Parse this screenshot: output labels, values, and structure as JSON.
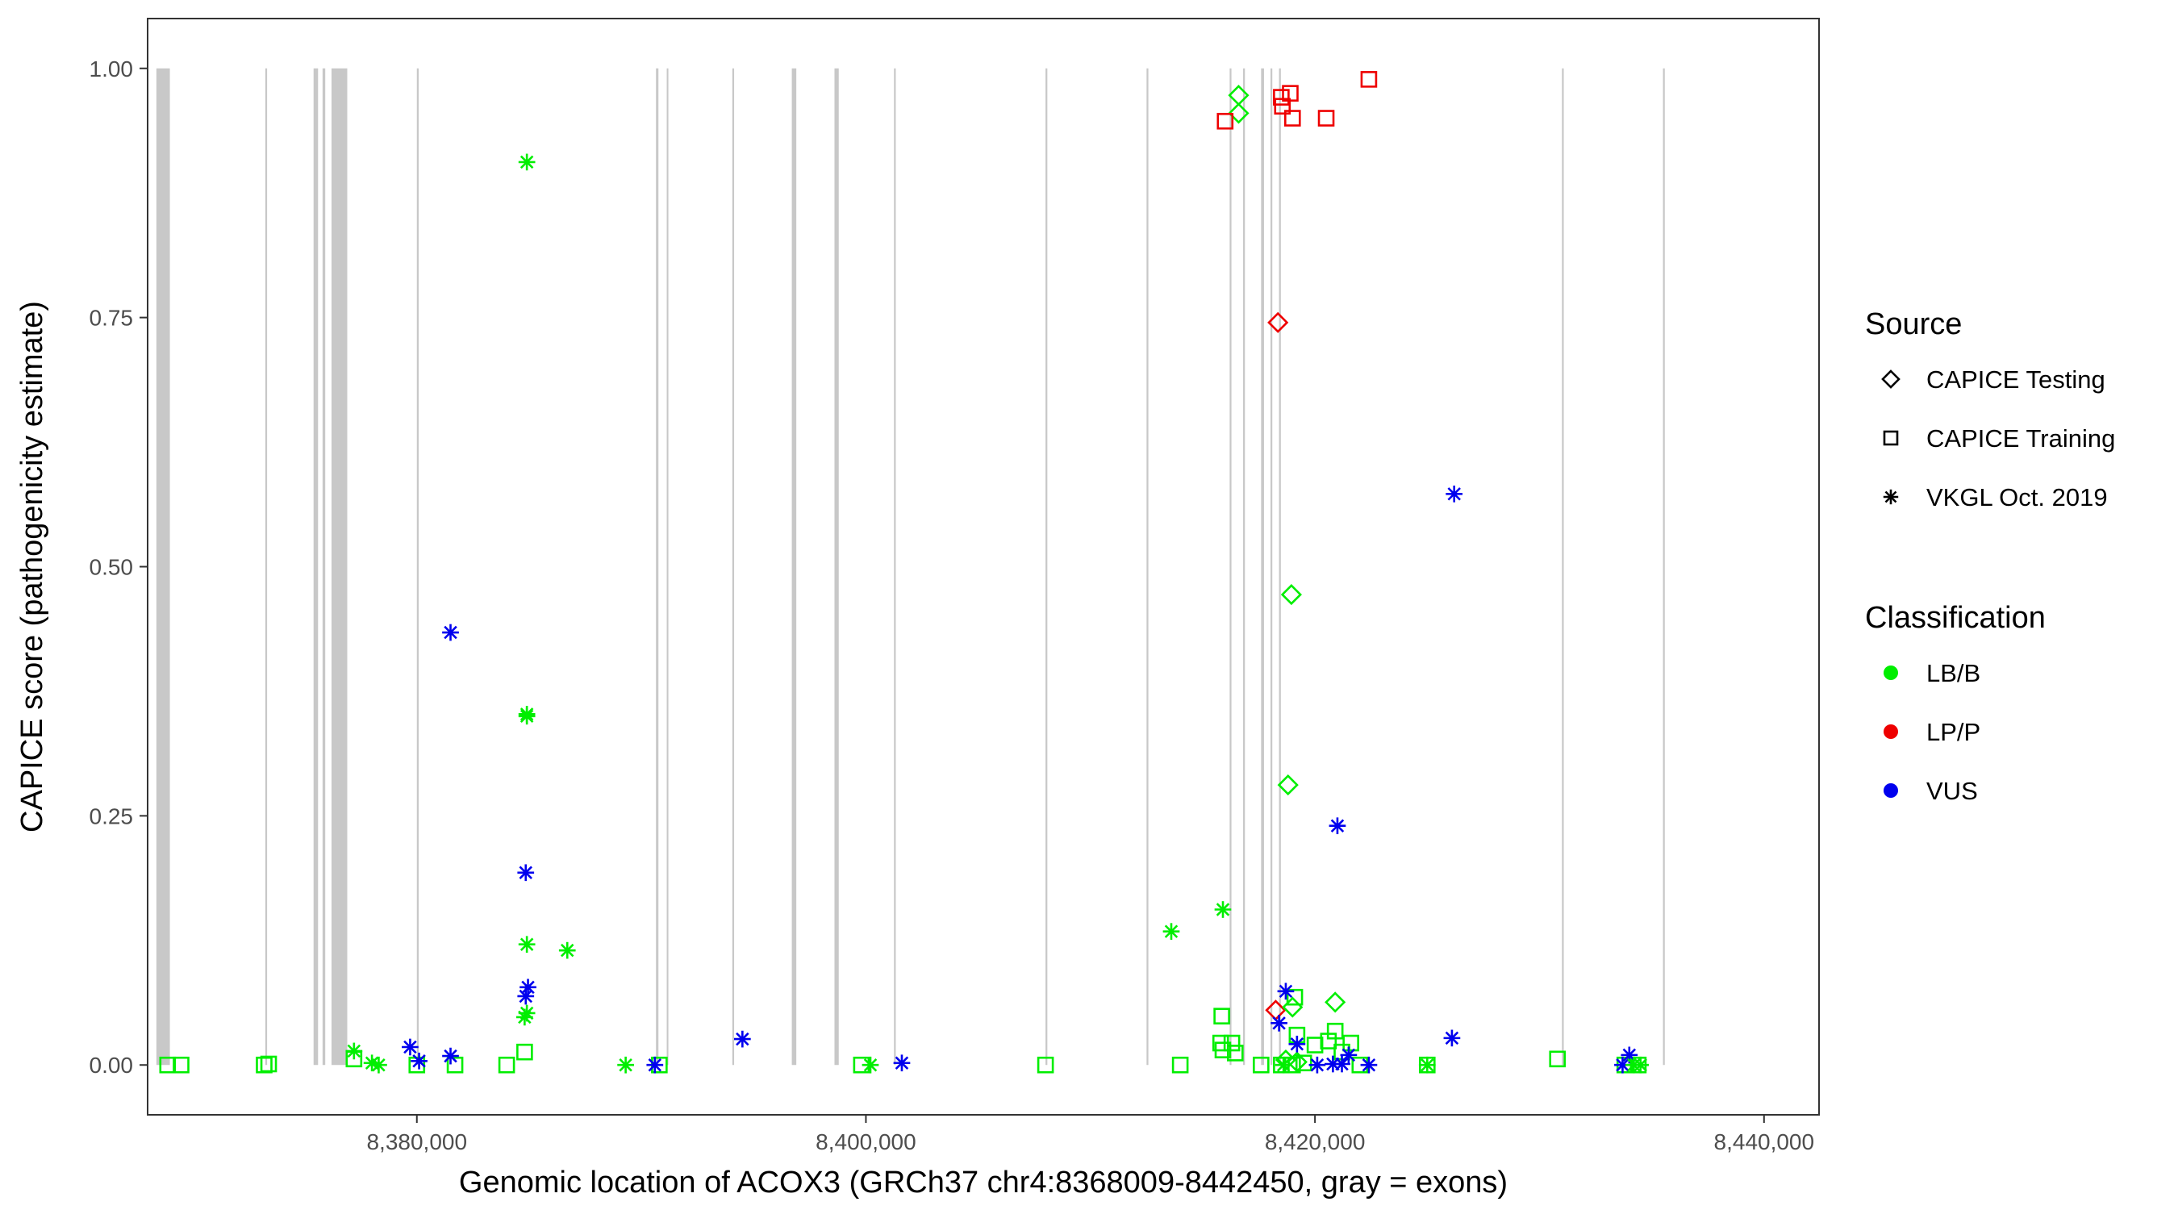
{
  "chart_data": {
    "type": "scatter",
    "title": "",
    "xlabel": "Genomic location of ACOX3 (GRCh37 chr4:8368009-8442450, gray = exons)",
    "ylabel": "CAPICE score (pathogenicity estimate)",
    "xlim": [
      8368009,
      8442450
    ],
    "ylim": [
      -0.05,
      1.05
    ],
    "x_ticks": [
      8380000,
      8400000,
      8420000,
      8440000
    ],
    "x_tick_labels": [
      "8,380,000",
      "8,400,000",
      "8,420,000",
      "8,440,000"
    ],
    "y_ticks": [
      0,
      0.25,
      0.5,
      0.75,
      1.0
    ],
    "y_tick_labels": [
      "0.00",
      "0.25",
      "0.50",
      "0.75",
      "1.00"
    ],
    "grid": false,
    "exons": [
      [
        8368400,
        8369000
      ],
      [
        8373250,
        8373330
      ],
      [
        8375400,
        8375600
      ],
      [
        8375800,
        8375920
      ],
      [
        8376200,
        8376900
      ],
      [
        8380000,
        8380080
      ],
      [
        8390650,
        8390760
      ],
      [
        8391130,
        8391200
      ],
      [
        8394050,
        8394130
      ],
      [
        8396700,
        8396900
      ],
      [
        8398600,
        8398790
      ],
      [
        8401250,
        8401330
      ],
      [
        8408000,
        8408080
      ],
      [
        8412500,
        8412580
      ],
      [
        8416200,
        8416280
      ],
      [
        8416800,
        8416880
      ],
      [
        8417600,
        8417730
      ],
      [
        8418020,
        8418100
      ],
      [
        8418400,
        8418480
      ],
      [
        8431000,
        8431080
      ],
      [
        8435500,
        8435580
      ]
    ],
    "legend": {
      "position": "right",
      "source_title": "Source",
      "source_items": [
        {
          "label": "CAPICE Testing",
          "shape": "diamond"
        },
        {
          "label": "CAPICE Training",
          "shape": "square"
        },
        {
          "label": "VKGL Oct. 2019",
          "shape": "asterisk"
        }
      ],
      "class_title": "Classification",
      "class_items": [
        {
          "label": "LB/B",
          "color": "#00ee00"
        },
        {
          "label": "LP/P",
          "color": "#ee0000"
        },
        {
          "label": "VUS",
          "color": "#0000ee"
        }
      ]
    },
    "series": [
      {
        "name": "CAPICE Testing",
        "shape": "diamond",
        "points": [
          {
            "x": 8416600,
            "y": 0.973,
            "c": "LB/B"
          },
          {
            "x": 8416600,
            "y": 0.955,
            "c": "LB/B"
          },
          {
            "x": 8418350,
            "y": 0.745,
            "c": "LP/P"
          },
          {
            "x": 8418950,
            "y": 0.472,
            "c": "LB/B"
          },
          {
            "x": 8418800,
            "y": 0.281,
            "c": "LB/B"
          },
          {
            "x": 8420900,
            "y": 0.063,
            "c": "LB/B"
          },
          {
            "x": 8418250,
            "y": 0.055,
            "c": "LP/P"
          },
          {
            "x": 8419000,
            "y": 0.058,
            "c": "LB/B"
          },
          {
            "x": 8418700,
            "y": 0.005,
            "c": "LB/B"
          },
          {
            "x": 8419200,
            "y": 0.003,
            "c": "LB/B"
          }
        ]
      },
      {
        "name": "CAPICE Training",
        "shape": "square",
        "points": [
          {
            "x": 8422400,
            "y": 0.989,
            "c": "LP/P"
          },
          {
            "x": 8418500,
            "y": 0.971,
            "c": "LP/P"
          },
          {
            "x": 8418900,
            "y": 0.975,
            "c": "LP/P"
          },
          {
            "x": 8418550,
            "y": 0.962,
            "c": "LP/P"
          },
          {
            "x": 8416000,
            "y": 0.947,
            "c": "LP/P"
          },
          {
            "x": 8419000,
            "y": 0.95,
            "c": "LP/P"
          },
          {
            "x": 8420500,
            "y": 0.95,
            "c": "LP/P"
          },
          {
            "x": 8368900,
            "y": 0.0,
            "c": "LB/B"
          },
          {
            "x": 8369500,
            "y": 0.0,
            "c": "LB/B"
          },
          {
            "x": 8373200,
            "y": 0.0,
            "c": "LB/B"
          },
          {
            "x": 8373400,
            "y": 0.001,
            "c": "LB/B"
          },
          {
            "x": 8377200,
            "y": 0.006,
            "c": "LB/B"
          },
          {
            "x": 8380000,
            "y": 0.0,
            "c": "LB/B"
          },
          {
            "x": 8381700,
            "y": 0.0,
            "c": "LB/B"
          },
          {
            "x": 8384000,
            "y": 0.0,
            "c": "LB/B"
          },
          {
            "x": 8384800,
            "y": 0.013,
            "c": "LB/B"
          },
          {
            "x": 8390800,
            "y": 0.0,
            "c": "LB/B"
          },
          {
            "x": 8399800,
            "y": 0.0,
            "c": "LB/B"
          },
          {
            "x": 8408000,
            "y": 0.0,
            "c": "LB/B"
          },
          {
            "x": 8414000,
            "y": 0.0,
            "c": "LB/B"
          },
          {
            "x": 8415850,
            "y": 0.049,
            "c": "LB/B"
          },
          {
            "x": 8415800,
            "y": 0.022,
            "c": "LB/B"
          },
          {
            "x": 8415900,
            "y": 0.015,
            "c": "LB/B"
          },
          {
            "x": 8416300,
            "y": 0.022,
            "c": "LB/B"
          },
          {
            "x": 8416450,
            "y": 0.012,
            "c": "LB/B"
          },
          {
            "x": 8417600,
            "y": 0.0,
            "c": "LB/B"
          },
          {
            "x": 8418500,
            "y": 0.0,
            "c": "LB/B"
          },
          {
            "x": 8419000,
            "y": 0.0,
            "c": "LB/B"
          },
          {
            "x": 8419100,
            "y": 0.068,
            "c": "LB/B"
          },
          {
            "x": 8419200,
            "y": 0.03,
            "c": "LB/B"
          },
          {
            "x": 8419500,
            "y": 0.002,
            "c": "LB/B"
          },
          {
            "x": 8420000,
            "y": 0.02,
            "c": "LB/B"
          },
          {
            "x": 8420600,
            "y": 0.024,
            "c": "LB/B"
          },
          {
            "x": 8420900,
            "y": 0.034,
            "c": "LB/B"
          },
          {
            "x": 8421200,
            "y": 0.013,
            "c": "LB/B"
          },
          {
            "x": 8421600,
            "y": 0.022,
            "c": "LB/B"
          },
          {
            "x": 8422000,
            "y": 0.0,
            "c": "LB/B"
          },
          {
            "x": 8425000,
            "y": 0.0,
            "c": "LB/B"
          },
          {
            "x": 8430800,
            "y": 0.006,
            "c": "LB/B"
          },
          {
            "x": 8433800,
            "y": 0.0,
            "c": "LB/B"
          },
          {
            "x": 8434400,
            "y": 0.0,
            "c": "LB/B"
          }
        ]
      },
      {
        "name": "VKGL Oct. 2019",
        "shape": "asterisk",
        "points": [
          {
            "x": 8384900,
            "y": 0.906,
            "c": "LB/B"
          },
          {
            "x": 8426200,
            "y": 0.573,
            "c": "VUS"
          },
          {
            "x": 8381500,
            "y": 0.434,
            "c": "VUS"
          },
          {
            "x": 8384900,
            "y": 0.35,
            "c": "LB/B"
          },
          {
            "x": 8384900,
            "y": 0.352,
            "c": "LB/B"
          },
          {
            "x": 8421000,
            "y": 0.24,
            "c": "VUS"
          },
          {
            "x": 8384850,
            "y": 0.193,
            "c": "VUS"
          },
          {
            "x": 8415900,
            "y": 0.156,
            "c": "LB/B"
          },
          {
            "x": 8413600,
            "y": 0.134,
            "c": "LB/B"
          },
          {
            "x": 8384900,
            "y": 0.121,
            "c": "LB/B"
          },
          {
            "x": 8386700,
            "y": 0.115,
            "c": "LB/B"
          },
          {
            "x": 8384950,
            "y": 0.078,
            "c": "VUS"
          },
          {
            "x": 8384850,
            "y": 0.069,
            "c": "VUS"
          },
          {
            "x": 8418700,
            "y": 0.074,
            "c": "VUS"
          },
          {
            "x": 8384800,
            "y": 0.048,
            "c": "LB/B"
          },
          {
            "x": 8384900,
            "y": 0.052,
            "c": "LB/B"
          },
          {
            "x": 8418400,
            "y": 0.042,
            "c": "VUS"
          },
          {
            "x": 8394500,
            "y": 0.026,
            "c": "VUS"
          },
          {
            "x": 8426100,
            "y": 0.027,
            "c": "VUS"
          },
          {
            "x": 8419200,
            "y": 0.021,
            "c": "VUS"
          },
          {
            "x": 8377200,
            "y": 0.014,
            "c": "LB/B"
          },
          {
            "x": 8379700,
            "y": 0.018,
            "c": "VUS"
          },
          {
            "x": 8381500,
            "y": 0.009,
            "c": "VUS"
          },
          {
            "x": 8380100,
            "y": 0.004,
            "c": "VUS"
          },
          {
            "x": 8378000,
            "y": 0.002,
            "c": "LB/B"
          },
          {
            "x": 8378300,
            "y": 0.0,
            "c": "LB/B"
          },
          {
            "x": 8389300,
            "y": 0.0,
            "c": "LB/B"
          },
          {
            "x": 8390600,
            "y": 0.0,
            "c": "VUS"
          },
          {
            "x": 8400200,
            "y": 0.0,
            "c": "LB/B"
          },
          {
            "x": 8401600,
            "y": 0.002,
            "c": "VUS"
          },
          {
            "x": 8418600,
            "y": 0.0,
            "c": "LB/B"
          },
          {
            "x": 8420100,
            "y": 0.0,
            "c": "VUS"
          },
          {
            "x": 8420800,
            "y": 0.001,
            "c": "VUS"
          },
          {
            "x": 8421500,
            "y": 0.01,
            "c": "VUS"
          },
          {
            "x": 8421200,
            "y": 0.001,
            "c": "VUS"
          },
          {
            "x": 8422400,
            "y": 0.0,
            "c": "VUS"
          },
          {
            "x": 8425000,
            "y": 0.0,
            "c": "LB/B"
          },
          {
            "x": 8433700,
            "y": 0.0,
            "c": "VUS"
          },
          {
            "x": 8434000,
            "y": 0.01,
            "c": "VUS"
          },
          {
            "x": 8434200,
            "y": 0.0,
            "c": "LB/B"
          },
          {
            "x": 8434500,
            "y": 0.0,
            "c": "LB/B"
          }
        ]
      }
    ]
  }
}
